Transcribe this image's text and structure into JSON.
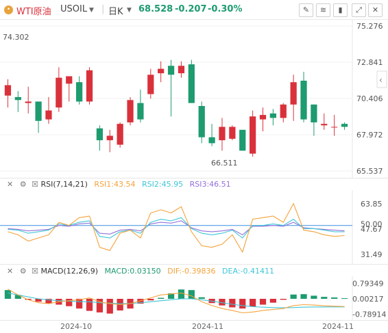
{
  "header": {
    "symbol_name": "WTI原油",
    "symbol_code": "USOIL",
    "interval": "日K",
    "price": "68.528",
    "change": "-0.207",
    "change_pct": "-0.30%",
    "colors": {
      "up": "#d9313b",
      "down": "#1e9b6f"
    }
  },
  "main_chart": {
    "y_ticks": [
      "75.276",
      "72.841",
      "70.406",
      "67.972",
      "65.537"
    ],
    "high_label": "74.302",
    "low_label": "66.511",
    "candles": [
      {
        "o": 70.6,
        "h": 71.7,
        "l": 69.8,
        "c": 71.3
      },
      {
        "o": 70.5,
        "h": 70.9,
        "l": 69.5,
        "c": 70.3
      },
      {
        "o": 70.1,
        "h": 71.2,
        "l": 69.4,
        "c": 70.2
      },
      {
        "o": 70.2,
        "h": 70.2,
        "l": 68.1,
        "c": 68.9
      },
      {
        "o": 69.0,
        "h": 70.5,
        "l": 68.7,
        "c": 69.6
      },
      {
        "o": 69.8,
        "h": 72.5,
        "l": 69.5,
        "c": 71.8
      },
      {
        "o": 71.4,
        "h": 71.9,
        "l": 70.2,
        "c": 71.9
      },
      {
        "o": 71.5,
        "h": 71.9,
        "l": 70.0,
        "c": 70.2
      },
      {
        "o": 70.2,
        "h": 72.5,
        "l": 70.0,
        "c": 72.3
      },
      {
        "o": 68.4,
        "h": 68.6,
        "l": 66.9,
        "c": 67.6
      },
      {
        "o": 67.6,
        "h": 68.3,
        "l": 66.8,
        "c": 67.9
      },
      {
        "o": 67.3,
        "h": 68.8,
        "l": 67.1,
        "c": 68.7
      },
      {
        "o": 68.8,
        "h": 70.5,
        "l": 68.6,
        "c": 70.3
      },
      {
        "o": 70.1,
        "h": 71.0,
        "l": 68.8,
        "c": 69.0
      },
      {
        "o": 70.7,
        "h": 72.4,
        "l": 70.4,
        "c": 72.0
      },
      {
        "o": 72.1,
        "h": 72.9,
        "l": 71.5,
        "c": 72.4
      },
      {
        "o": 72.6,
        "h": 73.0,
        "l": 69.2,
        "c": 72.0
      },
      {
        "o": 72.1,
        "h": 72.9,
        "l": 71.8,
        "c": 72.6
      },
      {
        "o": 72.7,
        "h": 73.0,
        "l": 70.1,
        "c": 70.1
      },
      {
        "o": 69.9,
        "h": 70.2,
        "l": 67.4,
        "c": 67.8
      },
      {
        "o": 67.8,
        "h": 68.7,
        "l": 67.2,
        "c": 67.4
      },
      {
        "o": 67.6,
        "h": 69.1,
        "l": 66.9,
        "c": 68.5
      },
      {
        "o": 67.7,
        "h": 68.6,
        "l": 67.6,
        "c": 68.5
      },
      {
        "o": 68.3,
        "h": 68.3,
        "l": 66.9,
        "c": 66.9
      },
      {
        "o": 66.7,
        "h": 69.6,
        "l": 66.5,
        "c": 69.2
      },
      {
        "o": 69.0,
        "h": 69.8,
        "l": 68.2,
        "c": 69.3
      },
      {
        "o": 69.4,
        "h": 69.7,
        "l": 68.6,
        "c": 69.1
      },
      {
        "o": 69.1,
        "h": 70.1,
        "l": 68.8,
        "c": 70.0
      },
      {
        "o": 70.0,
        "h": 72.0,
        "l": 68.9,
        "c": 71.5
      },
      {
        "o": 71.6,
        "h": 72.2,
        "l": 68.8,
        "c": 69.0
      },
      {
        "o": 70.0,
        "h": 70.0,
        "l": 67.9,
        "c": 68.8
      },
      {
        "o": 68.6,
        "h": 69.4,
        "l": 68.3,
        "c": 68.7
      },
      {
        "o": 68.5,
        "h": 69.3,
        "l": 67.9,
        "c": 68.5
      },
      {
        "o": 68.7,
        "h": 68.8,
        "l": 68.3,
        "c": 68.5
      }
    ]
  },
  "rsi": {
    "label": "RSI(7,14,21)",
    "rsi1_label": "RSI1:43.54",
    "rsi2_label": "RSI2:45.95",
    "rsi3_label": "RSI3:46.51",
    "y_ticks": [
      "63.85",
      "50.00",
      "47.67",
      "31.49"
    ],
    "colors": {
      "rsi1": "#f4a23a",
      "rsi2": "#3fc6d6",
      "rsi3": "#9370db",
      "ref": "#3b8fe4"
    },
    "rsi1": [
      46,
      44,
      40,
      42,
      44,
      52,
      50,
      55,
      56,
      36,
      34,
      45,
      47,
      42,
      58,
      60,
      58,
      62,
      46,
      37,
      36,
      38,
      44,
      33,
      54,
      55,
      56,
      52,
      64,
      47,
      46,
      44,
      43,
      43.54
    ],
    "rsi2": [
      47.5,
      47,
      45,
      46,
      47,
      51,
      50,
      52,
      53,
      43,
      42,
      46,
      47,
      45,
      52,
      54,
      53,
      55,
      48,
      45,
      44,
      45,
      47,
      42,
      50,
      50,
      51,
      50,
      54,
      48,
      48,
      47,
      46,
      45.95
    ],
    "rsi3": [
      48,
      47.5,
      46.5,
      47,
      47.5,
      50,
      49.5,
      51,
      51.5,
      45,
      44.5,
      47,
      47.5,
      46.5,
      51,
      52,
      51.5,
      53,
      48.5,
      46.5,
      46,
      46.5,
      47.5,
      44,
      49.5,
      49.5,
      50,
      49.5,
      52,
      48.5,
      48,
      47.5,
      47,
      46.51
    ]
  },
  "macd": {
    "label": "MACD(12,26,9)",
    "macd_label": "MACD:0.03150",
    "dif_label": "DIF:-0.39836",
    "dea_label": "DEA:-0.41411",
    "y_ticks": [
      "0.79349",
      "0.00217",
      "-0.78914"
    ],
    "colors": {
      "dif": "#f4a23a",
      "dea": "#3fc6d6",
      "bar_up": "#1e9b6f",
      "bar_down": "#d9313b"
    },
    "histogram": [
      0.45,
      0.2,
      -0.05,
      -0.15,
      -0.25,
      -0.3,
      -0.38,
      -0.5,
      -0.62,
      -0.7,
      -0.76,
      -0.6,
      -0.5,
      -0.25,
      -0.08,
      0.05,
      0.28,
      0.48,
      0.45,
      0.08,
      -0.22,
      -0.34,
      -0.44,
      -0.5,
      -0.4,
      -0.3,
      -0.2,
      -0.05,
      0.22,
      0.24,
      0.16,
      0.1,
      0.07,
      0.0315
    ],
    "dif": [
      0.5,
      0.2,
      -0.05,
      -0.2,
      -0.25,
      -0.15,
      -0.1,
      -0.05,
      0.05,
      -0.15,
      -0.25,
      -0.3,
      -0.25,
      -0.1,
      0.05,
      0.2,
      0.25,
      0.3,
      0.15,
      -0.15,
      -0.35,
      -0.5,
      -0.6,
      -0.72,
      -0.68,
      -0.6,
      -0.55,
      -0.5,
      -0.35,
      -0.3,
      -0.32,
      -0.36,
      -0.38,
      -0.39836
    ],
    "dea": [
      0.3,
      0.2,
      0.1,
      0.0,
      -0.05,
      -0.1,
      -0.12,
      -0.15,
      -0.15,
      -0.2,
      -0.22,
      -0.25,
      -0.24,
      -0.2,
      -0.15,
      -0.1,
      -0.05,
      0.0,
      0.0,
      -0.05,
      -0.12,
      -0.2,
      -0.28,
      -0.35,
      -0.4,
      -0.43,
      -0.45,
      -0.46,
      -0.45,
      -0.43,
      -0.42,
      -0.42,
      -0.415,
      -0.41411
    ]
  },
  "x_axis": {
    "labels": [
      "2024-10",
      "2024-11",
      "2024-11"
    ]
  }
}
